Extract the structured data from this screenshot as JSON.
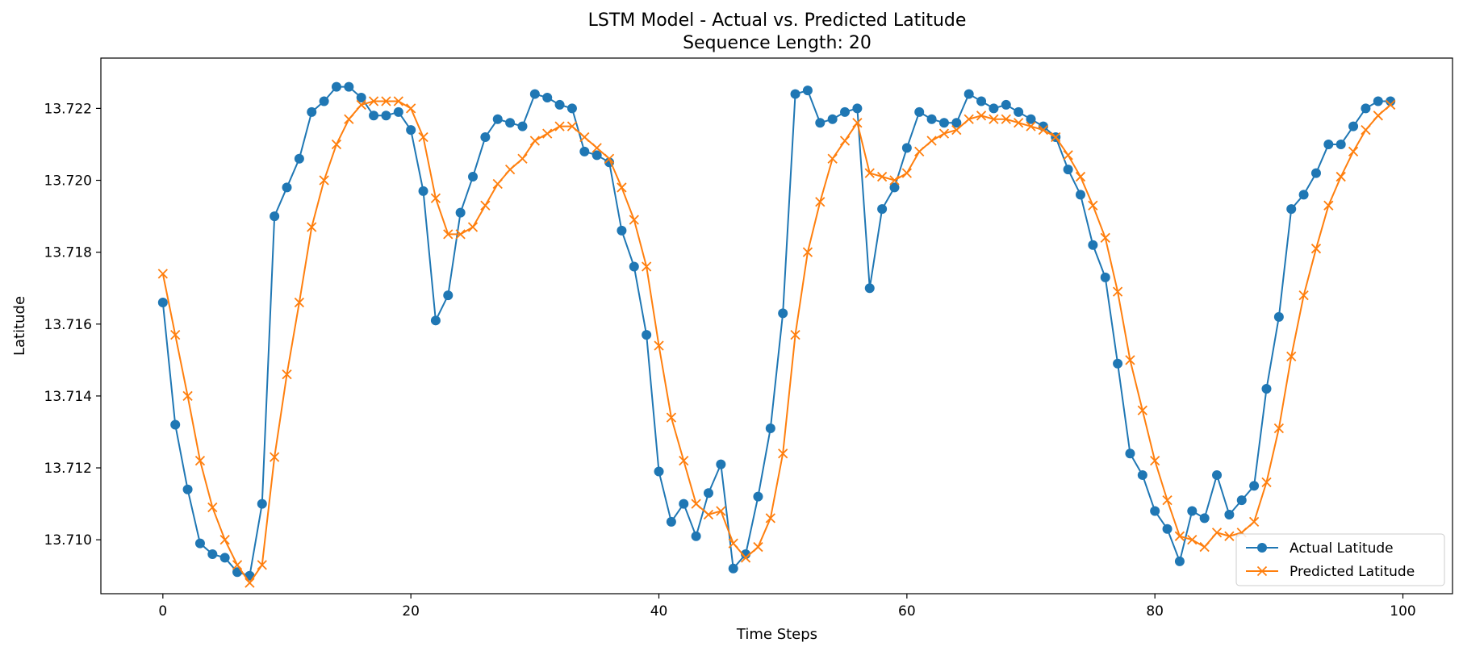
{
  "chart_data": {
    "type": "line",
    "title": "LSTM Model - Actual vs. Predicted Latitude",
    "subtitle": "Sequence Length: 20",
    "xlabel": "Time Steps",
    "ylabel": "Latitude",
    "xlim": [
      -5,
      104
    ],
    "ylim": [
      13.7085,
      13.7234
    ],
    "xticks": [
      0,
      20,
      40,
      60,
      80,
      100
    ],
    "xtick_labels": [
      "0",
      "20",
      "40",
      "60",
      "80",
      "100"
    ],
    "yticks": [
      13.71,
      13.712,
      13.714,
      13.716,
      13.718,
      13.72,
      13.722
    ],
    "ytick_labels": [
      "13.710",
      "13.712",
      "13.714",
      "13.716",
      "13.718",
      "13.720",
      "13.722"
    ],
    "grid": false,
    "legend_position": "lower-right",
    "series": [
      {
        "name": "Actual Latitude",
        "color": "#1f77b4",
        "marker": "circle",
        "x_start": 0,
        "values": [
          13.7166,
          13.7132,
          13.7114,
          13.7099,
          13.7096,
          13.7095,
          13.7091,
          13.709,
          13.711,
          13.719,
          13.7198,
          13.7206,
          13.7219,
          13.7222,
          13.7226,
          13.7226,
          13.7223,
          13.7218,
          13.7218,
          13.7219,
          13.7214,
          13.7197,
          13.7161,
          13.7168,
          13.7191,
          13.7201,
          13.7212,
          13.7217,
          13.7216,
          13.7215,
          13.7224,
          13.7223,
          13.7221,
          13.722,
          13.7208,
          13.7207,
          13.7205,
          13.7186,
          13.7176,
          13.7157,
          13.7119,
          13.7105,
          13.711,
          13.7101,
          13.7113,
          13.7121,
          13.7092,
          13.7096,
          13.7112,
          13.7131,
          13.7163,
          13.7224,
          13.7225,
          13.7216,
          13.7217,
          13.7219,
          13.722,
          13.717,
          13.7192,
          13.7198,
          13.7209,
          13.7219,
          13.7217,
          13.7216,
          13.7216,
          13.7224,
          13.7222,
          13.722,
          13.7221,
          13.7219,
          13.7217,
          13.7215,
          13.7212,
          13.7203,
          13.7196,
          13.7182,
          13.7173,
          13.7149,
          13.7124,
          13.7118,
          13.7108,
          13.7103,
          13.7094,
          13.7108,
          13.7106,
          13.7118,
          13.7107,
          13.7111,
          13.7115,
          13.7142,
          13.7162,
          13.7192,
          13.7196,
          13.7202,
          13.721,
          13.721,
          13.7215,
          13.722,
          13.7222,
          13.7222
        ]
      },
      {
        "name": "Predicted Latitude",
        "color": "#ff7f0e",
        "marker": "x",
        "x_start": 0,
        "values": [
          13.7174,
          13.7157,
          13.714,
          13.7122,
          13.7109,
          13.71,
          13.7093,
          13.7088,
          13.7093,
          13.7123,
          13.7146,
          13.7166,
          13.7187,
          13.72,
          13.721,
          13.7217,
          13.7221,
          13.7222,
          13.7222,
          13.7222,
          13.722,
          13.7212,
          13.7195,
          13.7185,
          13.7185,
          13.7187,
          13.7193,
          13.7199,
          13.7203,
          13.7206,
          13.7211,
          13.7213,
          13.7215,
          13.7215,
          13.7212,
          13.7209,
          13.7206,
          13.7198,
          13.7189,
          13.7176,
          13.7154,
          13.7134,
          13.7122,
          13.711,
          13.7107,
          13.7108,
          13.7099,
          13.7095,
          13.7098,
          13.7106,
          13.7124,
          13.7157,
          13.718,
          13.7194,
          13.7206,
          13.7211,
          13.7216,
          13.7202,
          13.7201,
          13.72,
          13.7202,
          13.7208,
          13.7211,
          13.7213,
          13.7214,
          13.7217,
          13.7218,
          13.7217,
          13.7217,
          13.7216,
          13.7215,
          13.7214,
          13.7212,
          13.7207,
          13.7201,
          13.7193,
          13.7184,
          13.7169,
          13.715,
          13.7136,
          13.7122,
          13.7111,
          13.7101,
          13.71,
          13.7098,
          13.7102,
          13.7101,
          13.7102,
          13.7105,
          13.7116,
          13.7131,
          13.7151,
          13.7168,
          13.7181,
          13.7193,
          13.7201,
          13.7208,
          13.7214,
          13.7218,
          13.7221
        ]
      }
    ]
  }
}
